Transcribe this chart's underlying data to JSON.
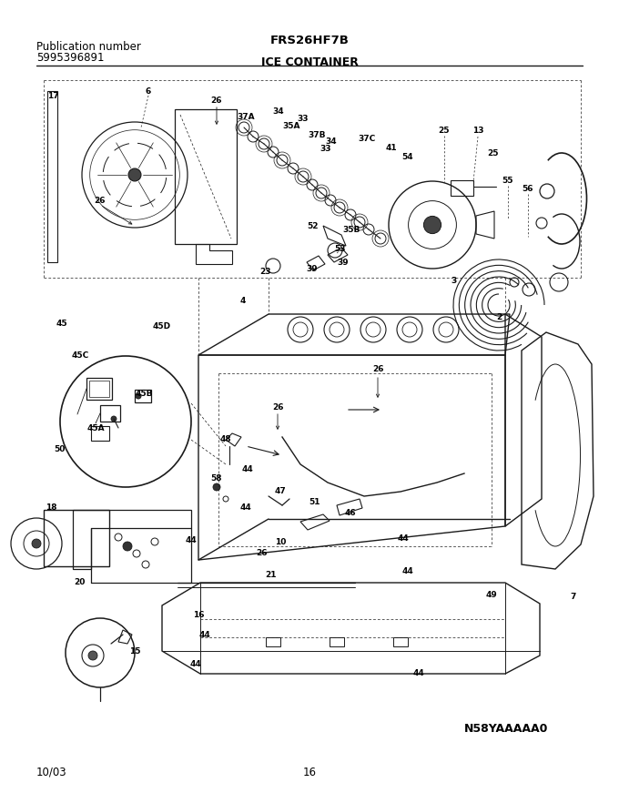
{
  "title_model": "FRS26HF7B",
  "title_section": "ICE CONTAINER",
  "pub_label": "Publication number",
  "pub_number": "5995396891",
  "date": "10/03",
  "page": "16",
  "diagram_id": "N58YAAAAA0",
  "bg_color": "#ffffff",
  "line_color": "#1a1a1a",
  "text_color": "#000000",
  "header_font_size": 8.5,
  "label_font_size": 6.5,
  "title_font_size": 9.5,
  "figw": 6.8,
  "figh": 8.71,
  "dpi": 100
}
